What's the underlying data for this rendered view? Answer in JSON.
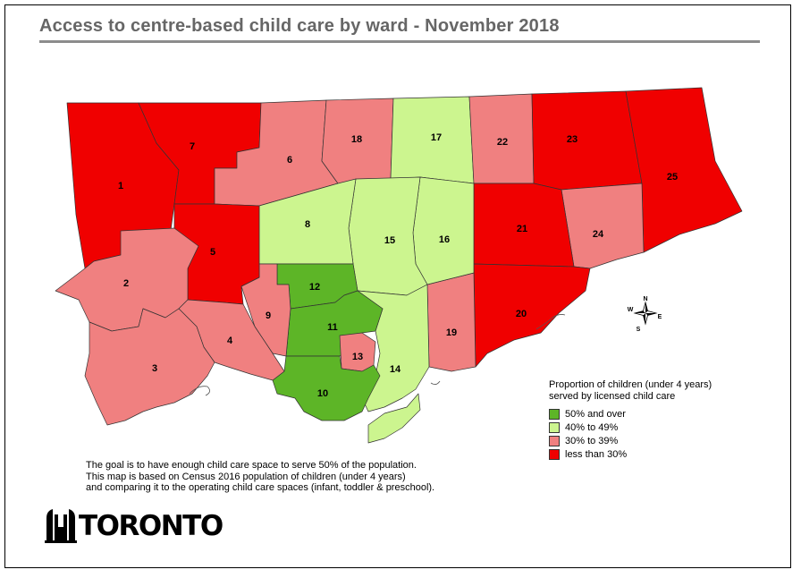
{
  "title": "Access to centre-based child care by ward - November 2018",
  "compass": {
    "n": "N",
    "s": "S",
    "e": "E",
    "w": "W"
  },
  "legend": {
    "title": "Proportion of children (under 4 years) served by licensed child care",
    "items": [
      {
        "label": "50% and over",
        "color": "#5db527"
      },
      {
        "label": "40% to 49%",
        "color": "#ccf58f"
      },
      {
        "label": "30% to 39%",
        "color": "#f08080"
      },
      {
        "label": "less than 30%",
        "color": "#f00000"
      }
    ]
  },
  "note": {
    "line1": "The goal is to have enough child care space to serve 50% of the population.",
    "line2": "This map is based on Census 2016 population of children (under 4 years)",
    "line3": "and comparing it to the operating child care spaces (infant, toddler & preschool)."
  },
  "logo_text": "TORONTO",
  "wards": [
    {
      "id": "1",
      "category": "less than 30%"
    },
    {
      "id": "2",
      "category": "30% to 39%"
    },
    {
      "id": "3",
      "category": "30% to 39%"
    },
    {
      "id": "4",
      "category": "30% to 39%"
    },
    {
      "id": "5",
      "category": "less than 30%"
    },
    {
      "id": "6",
      "category": "30% to 39%"
    },
    {
      "id": "7",
      "category": "less than 30%"
    },
    {
      "id": "8",
      "category": "40% to 49%"
    },
    {
      "id": "9",
      "category": "30% to 39%"
    },
    {
      "id": "10",
      "category": "50% and over"
    },
    {
      "id": "11",
      "category": "50% and over"
    },
    {
      "id": "12",
      "category": "50% and over"
    },
    {
      "id": "13",
      "category": "30% to 39%"
    },
    {
      "id": "14",
      "category": "40% to 49%"
    },
    {
      "id": "15",
      "category": "40% to 49%"
    },
    {
      "id": "16",
      "category": "40% to 49%"
    },
    {
      "id": "17",
      "category": "40% to 49%"
    },
    {
      "id": "18",
      "category": "30% to 39%"
    },
    {
      "id": "19",
      "category": "30% to 39%"
    },
    {
      "id": "20",
      "category": "less than 30%"
    },
    {
      "id": "21",
      "category": "less than 30%"
    },
    {
      "id": "22",
      "category": "30% to 39%"
    },
    {
      "id": "23",
      "category": "less than 30%"
    },
    {
      "id": "24",
      "category": "30% to 39%"
    },
    {
      "id": "25",
      "category": "less than 30%"
    }
  ]
}
